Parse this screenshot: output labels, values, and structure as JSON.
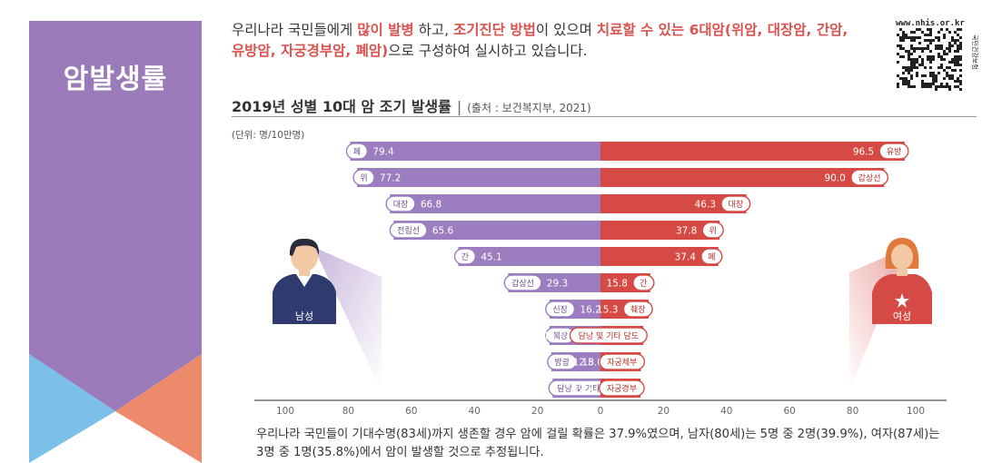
{
  "section_title": "암발생률",
  "intro": {
    "parts": [
      {
        "text": "우리나라 국민들에게 ",
        "hl": false
      },
      {
        "text": "많이 발병",
        "hl": true
      },
      {
        "text": " 하고, ",
        "hl": false
      },
      {
        "text": "조기진단 방법",
        "hl": true
      },
      {
        "text": "이 있으며 ",
        "hl": false
      },
      {
        "text": "치료할 수 있는 6대암(위암, 대장암, 간암, 유방암, 자궁경부암, 폐암)",
        "hl": true
      },
      {
        "text": "으로 구성하여 실시하고 있습니다.",
        "hl": false
      }
    ]
  },
  "qr": {
    "url_text": "www.nhis.or.kr",
    "side_text": "국민건강보험"
  },
  "chart_header": {
    "title": "2019년 성별 10대 암 조기 발생률",
    "separator": "|",
    "source": "(출처 : 보건복지부, 2021)"
  },
  "unit_label": "(단위: 명/10만명)",
  "figures": {
    "male_label": "남성",
    "female_label": "여성"
  },
  "colors": {
    "male": "#9c7dc0",
    "female": "#d54a45",
    "banner_purple": "#9a7ab8",
    "banner_blue": "#7cc0ea",
    "banner_salmon": "#ee8a6c"
  },
  "chart_data": {
    "type": "bar",
    "orientation": "horizontal-diverging",
    "xlim": [
      -100,
      100
    ],
    "x_ticks": [
      "100",
      "80",
      "60",
      "40",
      "20",
      "0",
      "20",
      "40",
      "60",
      "80",
      "100"
    ],
    "male": [
      {
        "label": "폐",
        "value": 79.4
      },
      {
        "label": "위",
        "value": 77.2
      },
      {
        "label": "대장",
        "value": 66.8
      },
      {
        "label": "전립선",
        "value": 65.6
      },
      {
        "label": "간",
        "value": 45.1
      },
      {
        "label": "갑상선",
        "value": 29.3
      },
      {
        "label": "신장",
        "value": 16.2
      },
      {
        "label": "췌장",
        "value": 16.2
      },
      {
        "label": "방광",
        "value": 15.6
      },
      {
        "label": "담낭 및 기타 담도",
        "value": 15.2
      }
    ],
    "female": [
      {
        "label": "유방",
        "value": 96.5
      },
      {
        "label": "갑상선",
        "value": 90.0
      },
      {
        "label": "대장",
        "value": 46.3
      },
      {
        "label": "위",
        "value": 37.8
      },
      {
        "label": "폐",
        "value": 37.4
      },
      {
        "label": "간",
        "value": 15.8
      },
      {
        "label": "췌장",
        "value": 15.3
      },
      {
        "label": "담낭 및 기타 담도",
        "value": 13.6
      },
      {
        "label": "자궁체부",
        "value": 12.8
      },
      {
        "label": "자궁경부",
        "value": 12.7
      }
    ]
  },
  "footnote": "우리나라 국민들이 기대수명(83세)까지 생존할 경우 암에 걸릴 확률은 37.9%였으며, 남자(80세)는 5명 중 2명(39.9%), 여자(87세)는 3명 중 1명(35.8%)에서 암이 발생할 것으로 추정됩니다."
}
